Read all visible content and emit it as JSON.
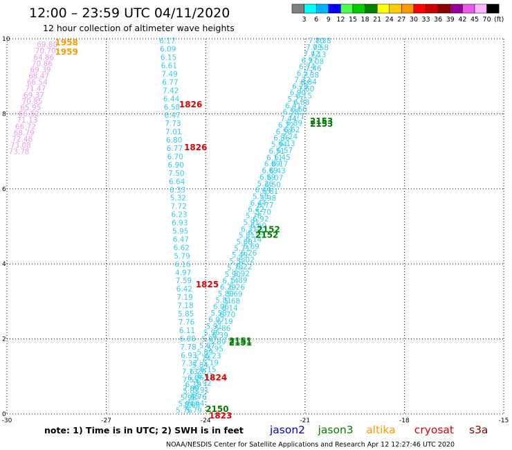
{
  "title": "12:00 – 23:59 UTC 04/11/2020",
  "subtitle": "12 hour collection of altimeter wave heights",
  "colorbar": {
    "levels": [
      "3",
      "6",
      "9",
      "12",
      "15",
      "18",
      "21",
      "24",
      "27",
      "30",
      "33",
      "36",
      "39",
      "42",
      "45",
      "70",
      "(ft)"
    ],
    "colors": [
      "#7f7f7f",
      "#00ffff",
      "#00b4ff",
      "#0000ff",
      "#4cff4c",
      "#00cc00",
      "#008000",
      "#ffff00",
      "#ffcc00",
      "#ff9900",
      "#ff0000",
      "#cc0000",
      "#8b0000",
      "#990099",
      "#e85ae8",
      "#ffb4ff",
      "#000000"
    ]
  },
  "note": "note: 1) Time is in UTC; 2) SWH is in feet",
  "legend": [
    {
      "name": "jason2",
      "color": "#0000cc"
    },
    {
      "name": "jason3",
      "color": "#008000"
    },
    {
      "name": "altika",
      "color": "#ff9900"
    },
    {
      "name": "cryosat",
      "color": "#e00000"
    },
    {
      "name": "s3a",
      "color": "#8b0000"
    }
  ],
  "footer": "NOAA/NESDIS Center for Satellite Applications and Research    Apr 12 12:27:46 UTC 2020",
  "chart_data": {
    "type": "scatter",
    "xlim": [
      -30,
      -15
    ],
    "ylim": [
      0,
      10
    ],
    "x_ticks": [
      -30,
      -27,
      -24,
      -21,
      -18,
      -15
    ],
    "y_ticks": [
      0,
      2,
      4,
      6,
      8,
      10
    ],
    "grid": true,
    "tracks": [
      {
        "satellite": "altika",
        "color": "#ee99ee",
        "x_start": -29.95,
        "x_end": -29.1,
        "y_start": 7.0,
        "y_end": 9.85,
        "values": [
          "73.78",
          "73.08",
          "72.48",
          "68.79",
          "66.72",
          "71.13",
          "66.52",
          "65.95",
          "70.85",
          "69.37",
          "71.47",
          "66.54",
          "68.47",
          "69.39",
          "70.86",
          "64.86",
          "70.70",
          "69.80"
        ]
      },
      {
        "satellite": "cryosat",
        "color": "#33ccee",
        "x_start": -25.4,
        "x_end": -24.65,
        "y_start": 9.95,
        "y_end": 0.25,
        "values": [
          "6.17",
          "6.09",
          "6.15",
          "6.61",
          "7.49",
          "6.77",
          "7.42",
          "6.44",
          "6.58",
          "6.47",
          "7.73",
          "7.01",
          "6.80",
          "6.77",
          "6.70",
          "6.90",
          "7.50",
          "6.64",
          "6.33",
          "5.32",
          "7.72",
          "6.23",
          "6.93",
          "5.95",
          "6.47",
          "6.62",
          "5.79",
          "6.16",
          "4.97",
          "7.59",
          "6.42",
          "7.19",
          "7.18",
          "5.85",
          "7.76",
          "6.11",
          "6.88",
          "7.78",
          "6.93",
          "7.32",
          "7.13",
          "7.55",
          "7.69",
          "7.45",
          "8.08"
        ]
      },
      {
        "satellite": "jason3",
        "color": "#33ccee",
        "x_start": -24.9,
        "x_end": -20.9,
        "y_start": 0.1,
        "y_end": 9.95,
        "values": [
          "5.76",
          "5.94",
          "5.98",
          "5.83",
          "6.19",
          "6.06",
          "6.20",
          "5.84",
          "5.74",
          "5.89",
          "5.67",
          "5.87",
          "5.96",
          "5.91",
          "6.07",
          "5.58",
          "6.06",
          "5.81",
          "5.89",
          "6.29",
          "6.14",
          "5.90",
          "5.79",
          "5.52",
          "5.49",
          "5.71",
          "5.68",
          "5.81",
          "6.31",
          "5.91",
          "5.76",
          "6.42",
          "6.44",
          "5.58",
          "6.44",
          "5.26",
          "6.59",
          "6.69",
          "6.09",
          "6.11",
          "6.51",
          "5.94",
          "6.86",
          "6.50",
          "6.22",
          "7.44",
          "6.58",
          "6.41",
          "5.77",
          "6.90",
          "6.28",
          "7.22",
          "6.57",
          "6.74",
          "6.97",
          "7.42",
          "7.09",
          "7.80"
        ]
      },
      {
        "satellite": "jason3",
        "color": "#33ccee",
        "x_start": -24.6,
        "x_end": -20.7,
        "y_start": 0.1,
        "y_end": 9.95,
        "values": [
          "5.79",
          "5.64",
          "5.76",
          "5.91",
          "5.92",
          "6.42",
          "6.15",
          "5.19",
          "6.23",
          "5.95",
          "5.89",
          "6.39",
          "5.86",
          "6.19",
          "6.70",
          "6.14",
          "5.68",
          "5.69",
          "6.26",
          "5.89",
          "5.92",
          "6.22",
          "6.02",
          "6.26",
          "5.69",
          "6.14",
          "6.73",
          "6.60",
          "6.92",
          "5.70",
          "6.77",
          "5.98",
          "6.81",
          "6.50",
          "6.07",
          "6.43",
          "6.17",
          "6.45",
          "6.57",
          "6.13",
          "7.24",
          "6.62",
          "6.89",
          "7.71",
          "6.60",
          "6.88",
          "6.15",
          "7.60",
          "6.84",
          "7.38",
          "7.46",
          "7.08",
          "7.13",
          "7.58",
          "7.38"
        ]
      }
    ],
    "pass_labels": [
      {
        "text": "1958",
        "color": "#ff9900",
        "x": -28.55,
        "y": 9.9
      },
      {
        "text": "1959",
        "color": "#ff9900",
        "x": -28.55,
        "y": 9.65
      },
      {
        "text": "1826",
        "color": "#e00000",
        "x": -24.8,
        "y": 8.25
      },
      {
        "text": "1826",
        "color": "#e00000",
        "x": -24.65,
        "y": 7.1
      },
      {
        "text": "1825",
        "color": "#e00000",
        "x": -24.3,
        "y": 3.45
      },
      {
        "text": "1824",
        "color": "#e00000",
        "x": -24.05,
        "y": 0.97
      },
      {
        "text": "1823",
        "color": "#e00000",
        "x": -23.9,
        "y": -0.05
      },
      {
        "text": "2153",
        "color": "#008000",
        "x": -20.85,
        "y": 7.8
      },
      {
        "text": "2153",
        "color": "#008000",
        "x": -20.85,
        "y": 7.73
      },
      {
        "text": "2152",
        "color": "#008000",
        "x": -22.45,
        "y": 4.92
      },
      {
        "text": "2152",
        "color": "#008000",
        "x": -22.5,
        "y": 4.77
      },
      {
        "text": "2151",
        "color": "#008000",
        "x": -23.3,
        "y": 1.95
      },
      {
        "text": "2151",
        "color": "#008000",
        "x": -23.3,
        "y": 1.9
      },
      {
        "text": "2150",
        "color": "#008000",
        "x": -24.0,
        "y": 0.13
      }
    ]
  }
}
